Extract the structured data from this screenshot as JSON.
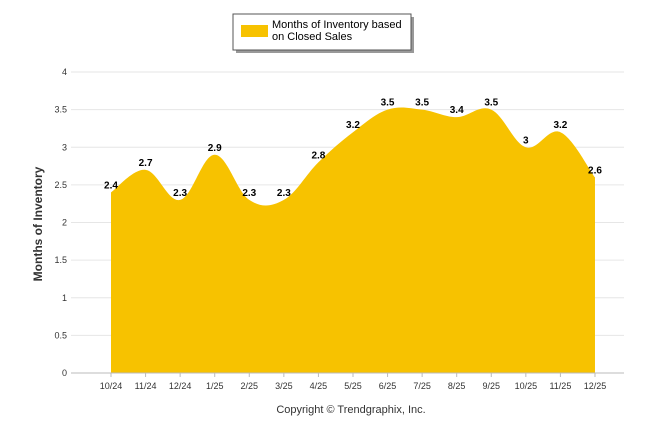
{
  "chart_data": {
    "type": "area",
    "categories": [
      "10/24",
      "11/24",
      "12/24",
      "1/25",
      "2/25",
      "3/25",
      "4/25",
      "5/25",
      "6/25",
      "7/25",
      "8/25",
      "9/25",
      "10/25",
      "11/25",
      "12/25"
    ],
    "series": [
      {
        "name": "Months of Inventory based on Closed Sales",
        "values": [
          2.4,
          2.7,
          2.3,
          2.9,
          2.3,
          2.3,
          2.8,
          3.2,
          3.5,
          3.5,
          3.4,
          3.5,
          3,
          3.2,
          2.6
        ],
        "labels": [
          "2.4",
          "2.7",
          "2.3",
          "2.9",
          "2.3",
          "2.3",
          "2.8",
          "3.2",
          "3.5",
          "3.5",
          "3.4",
          "3.5",
          "3",
          "3.2",
          "2.6"
        ],
        "color": "#f7c200"
      }
    ],
    "legend_lines": [
      "Months of Inventory based",
      "on Closed Sales"
    ],
    "ylabel": "Months of Inventory",
    "ylim": [
      0,
      4
    ],
    "yticks": [
      "0",
      "0.5",
      "1",
      "1.5",
      "2",
      "2.5",
      "3",
      "3.5",
      "4"
    ],
    "grid": true,
    "legend_position": "top-center"
  },
  "footer": {
    "copyright": "Copyright © Trendgraphix, Inc."
  },
  "colors": {
    "fill": "#f7c200",
    "grid": "#e6e6e6"
  }
}
